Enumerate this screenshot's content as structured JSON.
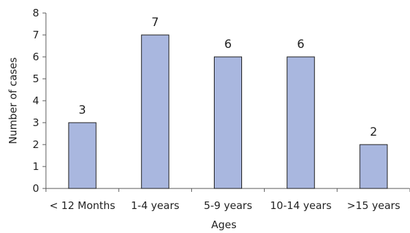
{
  "chart_data": {
    "type": "bar",
    "categories": [
      "< 12 Months",
      "1-4 years",
      "5-9 years",
      "10-14 years",
      ">15 years"
    ],
    "values": [
      3,
      7,
      6,
      6,
      2
    ],
    "data_labels": [
      "3",
      "7",
      "6",
      "6",
      "2"
    ],
    "xlabel": "Ages",
    "ylabel": "Number of cases",
    "ylim": [
      0,
      8
    ],
    "yticks": [
      0,
      1,
      2,
      3,
      4,
      5,
      6,
      7,
      8
    ],
    "grid": false,
    "legend": "none",
    "bar_color": "#a9b7df",
    "bar_edge_color": "#1a1a1a"
  }
}
